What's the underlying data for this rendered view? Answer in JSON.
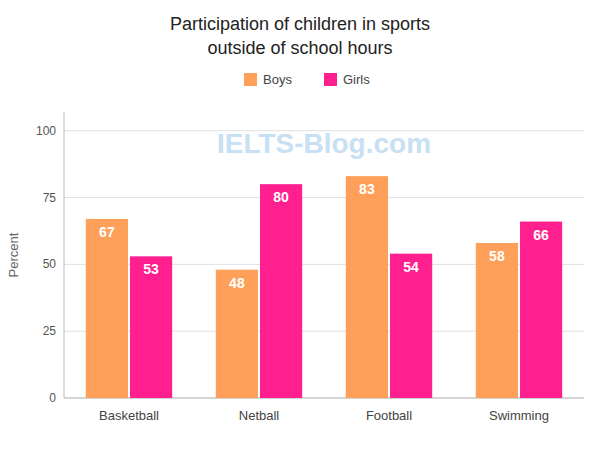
{
  "chart_data": {
    "type": "bar",
    "title": "Participation of children in sports",
    "subtitle": "outside of school hours",
    "y_label": "Percent",
    "categories": [
      "Basketball",
      "Netball",
      "Football",
      "Swimming"
    ],
    "series": [
      {
        "name": "Boys",
        "color": "#FFA05A",
        "values": [
          67,
          48,
          83,
          58
        ]
      },
      {
        "name": "Girls",
        "color": "#FF1F8E",
        "values": [
          53,
          80,
          54,
          66
        ]
      }
    ],
    "ylim": [
      0,
      107
    ],
    "yticks": [
      0,
      25,
      50,
      75,
      100
    ],
    "grid": true,
    "legend": "top",
    "data_labels": true,
    "annotations": [
      "IELTS-Blog.com"
    ]
  }
}
